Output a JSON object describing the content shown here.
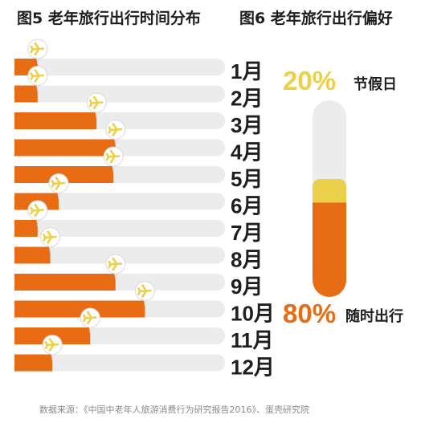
{
  "chart_data": [
    {
      "type": "bar",
      "title": "图5 老年旅行出行时间分布",
      "categories": [
        "1月",
        "2月",
        "3月",
        "4月",
        "5月",
        "6月",
        "7月",
        "8月",
        "9月",
        "10月",
        "11月",
        "12月"
      ],
      "values": [
        11,
        11,
        39,
        48,
        47,
        21,
        11,
        17,
        48,
        62,
        36,
        18
      ],
      "xlim": [
        0,
        100
      ],
      "grid": false,
      "colors": {
        "bar": "#e86c14",
        "track": "#ececec",
        "badge": "#ecd04a"
      },
      "icon": "airplane-icon"
    },
    {
      "type": "bar",
      "title": "图6 老年旅行出行偏好",
      "categories": [
        "节假日",
        "随时出行"
      ],
      "values": [
        20,
        80
      ],
      "value_labels": [
        "20%",
        "80%"
      ],
      "colors": {
        "节假日": "#ecd04a",
        "随时出行": "#e86c14",
        "track": "#ececec"
      }
    }
  ],
  "source": "数据来源：《中国中老年人旅游消费行为研究报告2016》、蛋壳研究院"
}
